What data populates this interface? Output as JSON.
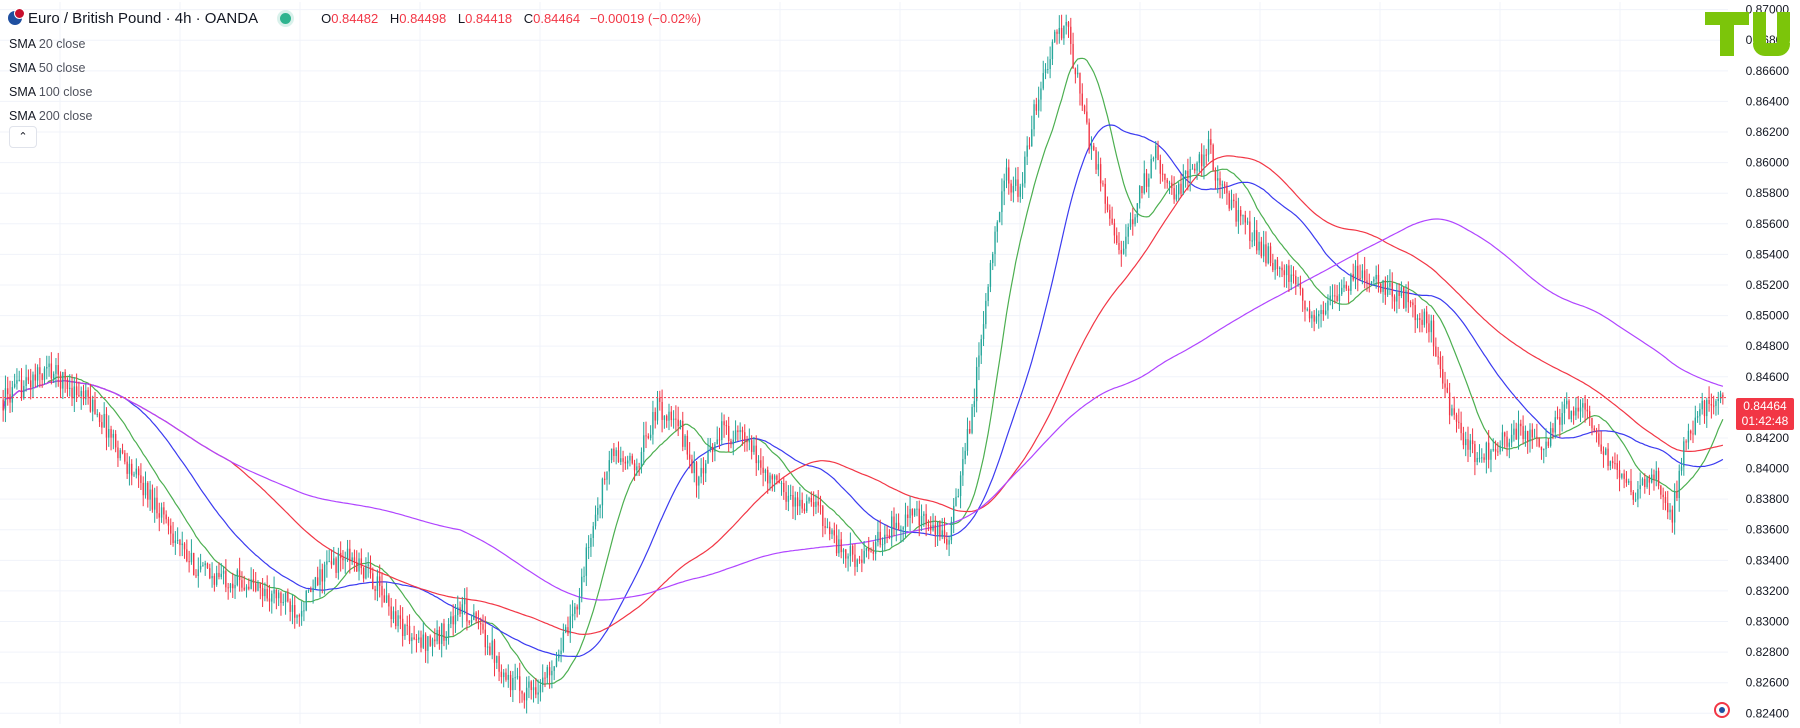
{
  "symbol": {
    "title": "Euro / British Pound · 4h · OANDA",
    "ohlc": {
      "o_label": "O",
      "o": "0.84482",
      "h_label": "H",
      "h": "0.84498",
      "l_label": "L",
      "l": "0.84418",
      "c_label": "C",
      "c": "0.84464",
      "change": "−0.00019 (−0.02%)"
    }
  },
  "indicators": [
    {
      "label": "SMA",
      "params": "20 close",
      "color": "#4caf50"
    },
    {
      "label": "SMA",
      "params": "50 close",
      "color": "#3b3bf0"
    },
    {
      "label": "SMA",
      "params": "100 close",
      "color": "#f23645"
    },
    {
      "label": "SMA",
      "params": "200 close",
      "color": "#b045ff"
    }
  ],
  "collapse_icon": "chevron-up-icon",
  "last_price": {
    "value": "0.84464",
    "countdown": "01:42:48"
  },
  "colors": {
    "up": "#26a69a",
    "down": "#f23645",
    "grid": "#f0f3fa",
    "axis_text": "#131722",
    "logo": "#7cc50a"
  },
  "chart_data": {
    "type": "candlestick",
    "ylim": [
      0.8233,
      0.8705
    ],
    "y_ticks": [
      "0.87000",
      "0.86800",
      "0.86600",
      "0.86400",
      "0.86200",
      "0.86000",
      "0.85800",
      "0.85600",
      "0.85400",
      "0.85200",
      "0.85000",
      "0.84800",
      "0.84600",
      "0.84400",
      "0.84200",
      "0.84000",
      "0.83800",
      "0.83600",
      "0.83400",
      "0.83200",
      "0.83000",
      "0.82800",
      "0.82600",
      "0.82400"
    ],
    "price_anchors": [
      [
        0,
        0.8445
      ],
      [
        20,
        0.8465
      ],
      [
        40,
        0.844
      ],
      [
        55,
        0.84
      ],
      [
        70,
        0.837
      ],
      [
        80,
        0.834
      ],
      [
        90,
        0.833
      ],
      [
        100,
        0.8328
      ],
      [
        107,
        0.8325
      ],
      [
        112,
        0.832
      ],
      [
        120,
        0.8315
      ],
      [
        128,
        0.8308
      ],
      [
        135,
        0.832
      ],
      [
        140,
        0.8335
      ],
      [
        150,
        0.8342
      ],
      [
        160,
        0.833
      ],
      [
        170,
        0.8305
      ],
      [
        180,
        0.8285
      ],
      [
        190,
        0.829
      ],
      [
        200,
        0.831
      ],
      [
        210,
        0.829
      ],
      [
        220,
        0.8262
      ],
      [
        227,
        0.8255
      ],
      [
        235,
        0.826
      ],
      [
        248,
        0.83
      ],
      [
        258,
        0.837
      ],
      [
        265,
        0.841
      ],
      [
        275,
        0.84
      ],
      [
        285,
        0.844
      ],
      [
        295,
        0.8425
      ],
      [
        303,
        0.839
      ],
      [
        312,
        0.8425
      ],
      [
        322,
        0.842
      ],
      [
        333,
        0.8395
      ],
      [
        345,
        0.8378
      ],
      [
        355,
        0.8375
      ],
      [
        365,
        0.8345
      ],
      [
        375,
        0.834
      ],
      [
        385,
        0.836
      ],
      [
        395,
        0.837
      ],
      [
        405,
        0.836
      ],
      [
        412,
        0.8355
      ],
      [
        418,
        0.84
      ],
      [
        425,
        0.847
      ],
      [
        432,
        0.856
      ],
      [
        437,
        0.859
      ],
      [
        443,
        0.858
      ],
      [
        450,
        0.864
      ],
      [
        458,
        0.868
      ],
      [
        463,
        0.869
      ],
      [
        467,
        0.866
      ],
      [
        472,
        0.862
      ],
      [
        478,
        0.859
      ],
      [
        483,
        0.856
      ],
      [
        488,
        0.854
      ],
      [
        495,
        0.858
      ],
      [
        502,
        0.8605
      ],
      [
        510,
        0.858
      ],
      [
        518,
        0.8595
      ],
      [
        525,
        0.861
      ],
      [
        530,
        0.8585
      ],
      [
        540,
        0.856
      ],
      [
        550,
        0.854
      ],
      [
        560,
        0.8525
      ],
      [
        570,
        0.85
      ],
      [
        580,
        0.851
      ],
      [
        590,
        0.853
      ],
      [
        600,
        0.852
      ],
      [
        612,
        0.851
      ],
      [
        622,
        0.849
      ],
      [
        628,
        0.845
      ],
      [
        633,
        0.8425
      ],
      [
        642,
        0.8408
      ],
      [
        650,
        0.8415
      ],
      [
        660,
        0.8425
      ],
      [
        670,
        0.8412
      ],
      [
        680,
        0.844
      ],
      [
        690,
        0.8435
      ],
      [
        700,
        0.84
      ],
      [
        710,
        0.8385
      ],
      [
        720,
        0.8395
      ],
      [
        727,
        0.837
      ],
      [
        733,
        0.842
      ],
      [
        740,
        0.844
      ],
      [
        749,
        0.845
      ]
    ],
    "notes": "Approximate 4h candles, roughly 750 bars; moving averages SMA 20/50/100/200 computed from close"
  }
}
